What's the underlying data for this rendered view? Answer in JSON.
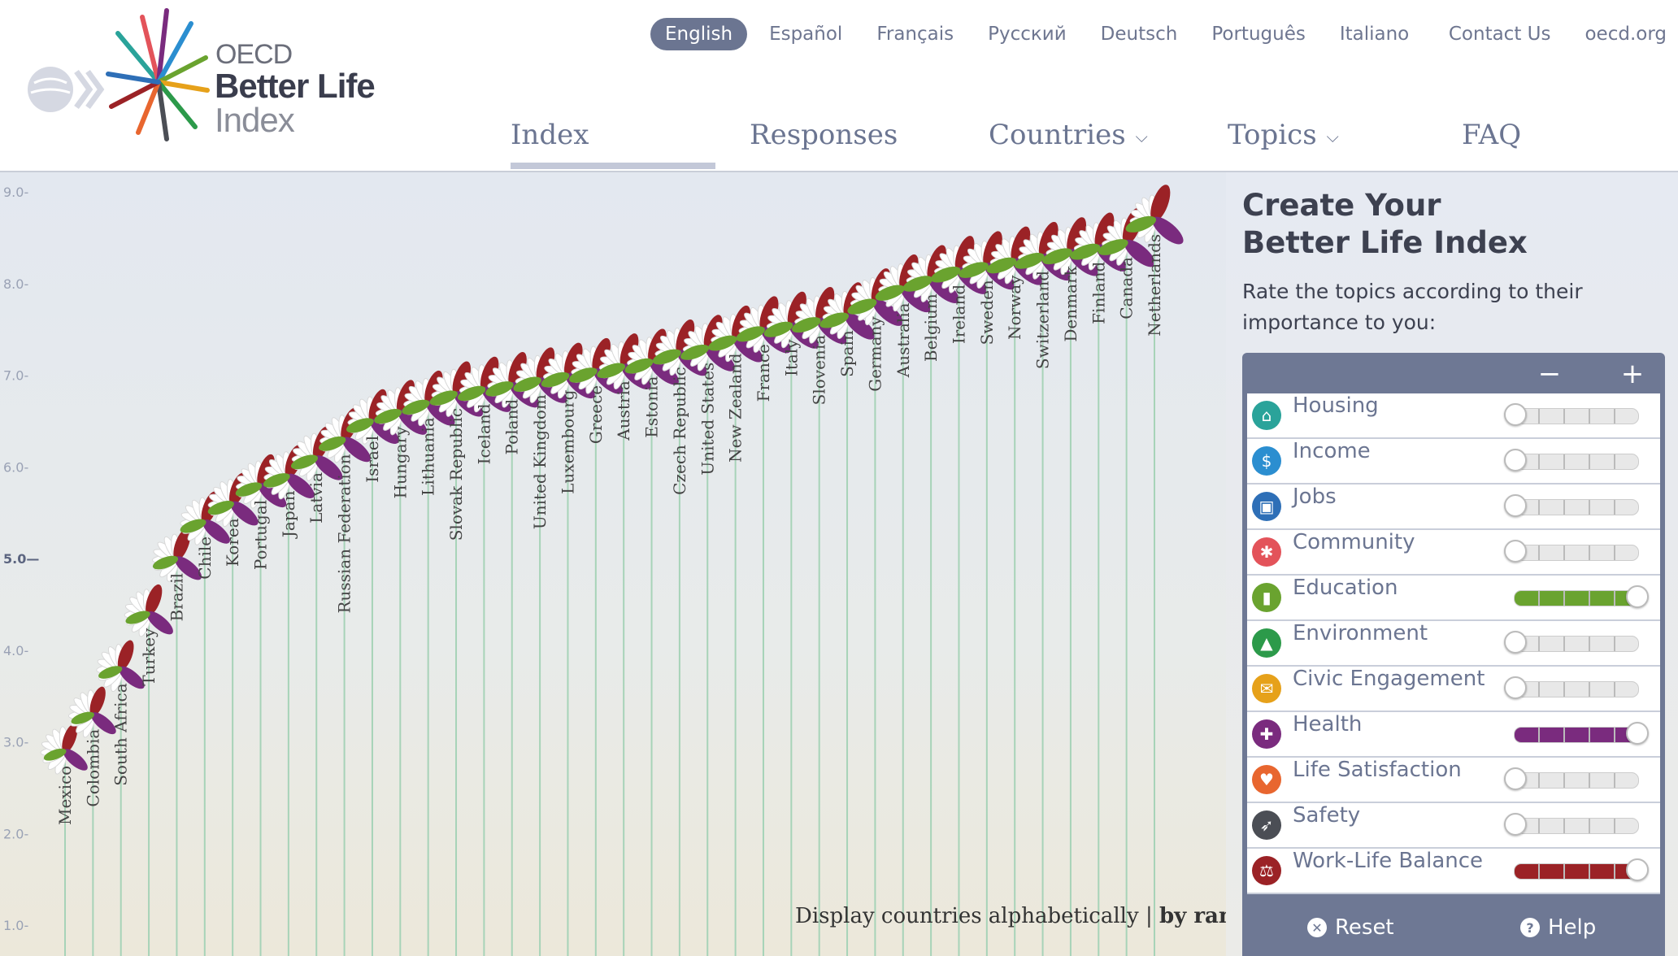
{
  "logo": {
    "oecd": "OECD",
    "better_life": "Better Life",
    "index": "Index"
  },
  "languages": [
    {
      "label": "English",
      "active": true
    },
    {
      "label": "Español"
    },
    {
      "label": "Français"
    },
    {
      "label": "Русский"
    },
    {
      "label": "Deutsch"
    },
    {
      "label": "Português"
    },
    {
      "label": "Italiano"
    }
  ],
  "utility_links": [
    "Contact Us",
    "oecd.org"
  ],
  "nav": [
    {
      "label": "Index",
      "active": true
    },
    {
      "label": "Responses"
    },
    {
      "label": "Countries",
      "dropdown": true
    },
    {
      "label": "Topics",
      "dropdown": true
    },
    {
      "label": "FAQ"
    }
  ],
  "chart_data": {
    "type": "scatter",
    "title": "",
    "y_ticks": [
      "9.0-",
      "8.0-",
      "7.0-",
      "6.0-",
      "5.0—",
      "4.0-",
      "3.0-",
      "2.0-",
      "1.0-"
    ],
    "ylim": [
      1.0,
      9.0
    ],
    "countries": [
      {
        "name": "Mexico",
        "score": 2.9
      },
      {
        "name": "Colombia",
        "score": 3.3
      },
      {
        "name": "South Africa",
        "score": 3.8
      },
      {
        "name": "Turkey",
        "score": 4.4
      },
      {
        "name": "Brazil",
        "score": 5.0
      },
      {
        "name": "Chile",
        "score": 5.4
      },
      {
        "name": "Korea",
        "score": 5.6
      },
      {
        "name": "Portugal",
        "score": 5.8
      },
      {
        "name": "Japan",
        "score": 5.9
      },
      {
        "name": "Latvia",
        "score": 6.1
      },
      {
        "name": "Russian Federation",
        "score": 6.3
      },
      {
        "name": "Israel",
        "score": 6.5
      },
      {
        "name": "Hungary",
        "score": 6.6
      },
      {
        "name": "Lithuania",
        "score": 6.7
      },
      {
        "name": "Slovak Republic",
        "score": 6.8
      },
      {
        "name": "Iceland",
        "score": 6.85
      },
      {
        "name": "Poland",
        "score": 6.9
      },
      {
        "name": "United Kingdom",
        "score": 6.95
      },
      {
        "name": "Luxembourg",
        "score": 7.0
      },
      {
        "name": "Greece",
        "score": 7.05
      },
      {
        "name": "Austria",
        "score": 7.1
      },
      {
        "name": "Estonia",
        "score": 7.15
      },
      {
        "name": "Czech Republic",
        "score": 7.25
      },
      {
        "name": "United States",
        "score": 7.3
      },
      {
        "name": "New Zealand",
        "score": 7.4
      },
      {
        "name": "France",
        "score": 7.5
      },
      {
        "name": "Italy",
        "score": 7.55
      },
      {
        "name": "Slovenia",
        "score": 7.6
      },
      {
        "name": "Spain",
        "score": 7.65
      },
      {
        "name": "Germany",
        "score": 7.8
      },
      {
        "name": "Australia",
        "score": 7.95
      },
      {
        "name": "Belgium",
        "score": 8.05
      },
      {
        "name": "Ireland",
        "score": 8.15
      },
      {
        "name": "Sweden",
        "score": 8.2
      },
      {
        "name": "Norway",
        "score": 8.25
      },
      {
        "name": "Switzerland",
        "score": 8.3
      },
      {
        "name": "Denmark",
        "score": 8.35
      },
      {
        "name": "Finland",
        "score": 8.4
      },
      {
        "name": "Canada",
        "score": 8.45
      },
      {
        "name": "Netherlands",
        "score": 8.7
      }
    ]
  },
  "sort": {
    "alpha_label": "Display countries alphabetically",
    "separator": " | ",
    "rank_label": "by rank"
  },
  "panel": {
    "title_line1": "Create Your",
    "title_line2": "Better Life Index",
    "subtitle": "Rate the topics according to their importance to you:",
    "minus": "−",
    "plus": "+",
    "topics": [
      {
        "label": "Housing",
        "icon": "house-icon",
        "color": "#2aa39a",
        "rating": 0
      },
      {
        "label": "Income",
        "icon": "money-icon",
        "color": "#2b8ed0",
        "rating": 0
      },
      {
        "label": "Jobs",
        "icon": "briefcase-icon",
        "color": "#2e6fb7",
        "rating": 0
      },
      {
        "label": "Community",
        "icon": "people-icon",
        "color": "#e3535a",
        "rating": 0
      },
      {
        "label": "Education",
        "icon": "book-icon",
        "color": "#6aa32f",
        "rating": 5
      },
      {
        "label": "Environment",
        "icon": "tree-icon",
        "color": "#2c9a4a",
        "rating": 0
      },
      {
        "label": "Civic Engagement",
        "icon": "envelope-icon",
        "color": "#e6a11a",
        "rating": 0
      },
      {
        "label": "Health",
        "icon": "cross-icon",
        "color": "#7a2b7e",
        "rating": 5
      },
      {
        "label": "Life Satisfaction",
        "icon": "heart-icon",
        "color": "#e8662f",
        "rating": 0
      },
      {
        "label": "Safety",
        "icon": "runner-icon",
        "color": "#4b4e55",
        "rating": 0
      },
      {
        "label": "Work-Life Balance",
        "icon": "scale-icon",
        "color": "#9b2226",
        "rating": 5
      }
    ],
    "reset_label": "Reset",
    "help_label": "Help"
  }
}
